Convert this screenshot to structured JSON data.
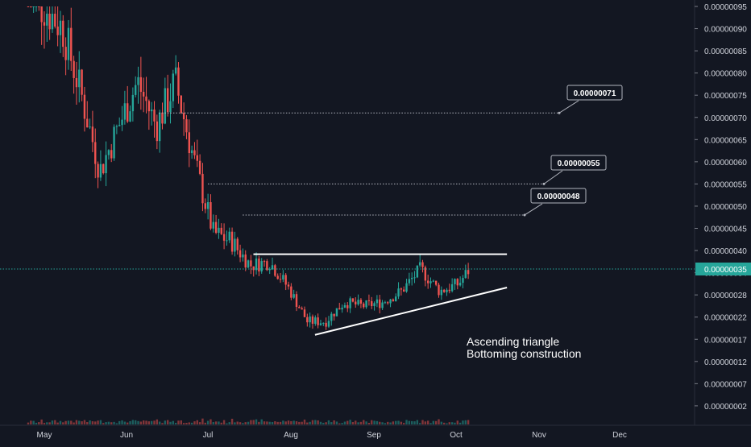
{
  "chart_data": {
    "type": "candlestick",
    "y_axis": {
      "position": "right",
      "ticks": [
        "0.00000095",
        "0.00000090",
        "0.00000085",
        "0.00000080",
        "0.00000075",
        "0.00000070",
        "0.00000065",
        "0.00000060",
        "0.00000055",
        "0.00000050",
        "0.00000045",
        "0.00000040",
        "0.00000034",
        "0.00000028",
        "0.00000022",
        "0.00000017",
        "0.00000012",
        "0.00000007",
        "0.00000002"
      ],
      "current_price_label": "0.00000035"
    },
    "x_axis": {
      "ticks": [
        "May",
        "Jun",
        "Jul",
        "Aug",
        "Sep",
        "Oct",
        "Nov",
        "Dec"
      ]
    },
    "resistance_line": {
      "value": 3.9e-07,
      "from": "Jul 18",
      "to": "Oct 20"
    },
    "support_line": {
      "from_value": 1.8e-07,
      "to_value": 3e-07,
      "from": "Aug 10",
      "to": "Oct 20"
    },
    "levels": [
      {
        "label": "0.00000071",
        "value": 7.1e-07
      },
      {
        "label": "0.00000055",
        "value": 5.5e-07
      },
      {
        "label": "0.00000048",
        "value": 4.8e-07
      }
    ],
    "annotation_lines": [
      "Ascending triangle",
      "Bottoming construction"
    ],
    "colors": {
      "up": "#26a69a",
      "down": "#ef5350",
      "background": "#131722",
      "axis_text": "#d1d4dc",
      "current_price": "#26a69a"
    },
    "price_series_weekly": [
      {
        "date": "May 01",
        "close": 9.5e-07
      },
      {
        "date": "May 08",
        "close": 9e-07
      },
      {
        "date": "May 15",
        "close": 7.5e-07
      },
      {
        "date": "May 22",
        "close": 5.8e-07
      },
      {
        "date": "May 29",
        "close": 6.8e-07
      },
      {
        "date": "Jun 05",
        "close": 7.8e-07
      },
      {
        "date": "Jun 12",
        "close": 6.8e-07
      },
      {
        "date": "Jun 19",
        "close": 7.8e-07
      },
      {
        "date": "Jun 26",
        "close": 6e-07
      },
      {
        "date": "Jul 03",
        "close": 4.4e-07
      },
      {
        "date": "Jul 10",
        "close": 4.2e-07
      },
      {
        "date": "Jul 17",
        "close": 3.6e-07
      },
      {
        "date": "Jul 24",
        "close": 3.7e-07
      },
      {
        "date": "Jul 31",
        "close": 3e-07
      },
      {
        "date": "Aug 07",
        "close": 2.1e-07
      },
      {
        "date": "Aug 14",
        "close": 2.1e-07
      },
      {
        "date": "Aug 21",
        "close": 2.6e-07
      },
      {
        "date": "Aug 28",
        "close": 2.5e-07
      },
      {
        "date": "Sep 04",
        "close": 2.6e-07
      },
      {
        "date": "Sep 11",
        "close": 2.9e-07
      },
      {
        "date": "Sep 18",
        "close": 3.5e-07
      },
      {
        "date": "Sep 25",
        "close": 2.9e-07
      },
      {
        "date": "Oct 02",
        "close": 3.1e-07
      },
      {
        "date": "Oct 06",
        "close": 3.5e-07
      }
    ]
  }
}
